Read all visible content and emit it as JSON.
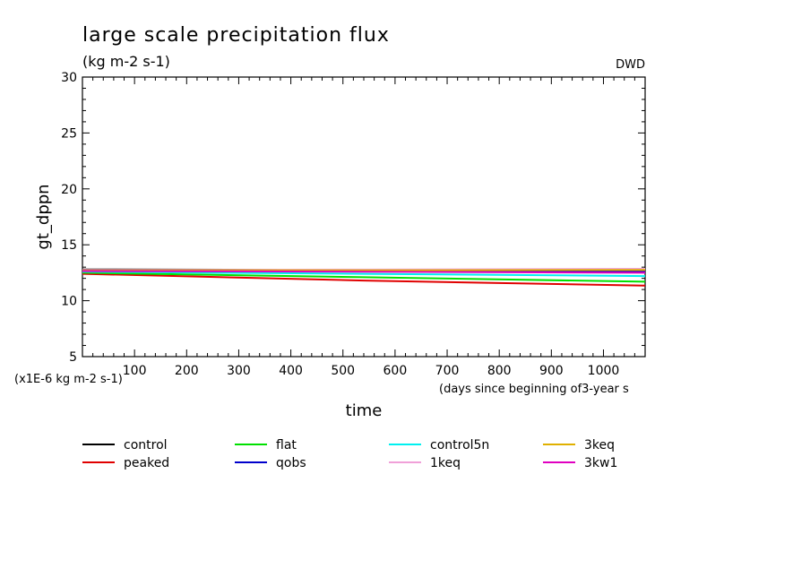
{
  "chart_data": {
    "type": "line",
    "title": "large scale precipitation flux",
    "units": "(kg m-2 s-1)",
    "source_label": "DWD",
    "ylabel": "gt_dppn",
    "xlabel": "time",
    "x_units": "(days since beginning of3-year s",
    "y_scale_note": "(x1E-6 kg m-2 s-1)",
    "xlim": [
      0,
      1080
    ],
    "ylim": [
      5,
      30
    ],
    "x_ticks": [
      100,
      200,
      300,
      400,
      500,
      600,
      700,
      800,
      900,
      1000
    ],
    "y_ticks": [
      5,
      10,
      15,
      20,
      25,
      30
    ],
    "grid": false,
    "legend_position": "bottom",
    "series": [
      {
        "name": "control",
        "color": "#000000",
        "x": [
          0,
          540,
          1080
        ],
        "values": [
          12.8,
          12.75,
          12.75
        ]
      },
      {
        "name": "peaked",
        "color": "#e00000",
        "x": [
          0,
          540,
          1080
        ],
        "values": [
          12.4,
          11.8,
          11.35
        ]
      },
      {
        "name": "flat",
        "color": "#00e000",
        "x": [
          0,
          540,
          1080
        ],
        "values": [
          12.5,
          12.1,
          11.7
        ]
      },
      {
        "name": "qobs",
        "color": "#0000cc",
        "x": [
          0,
          540,
          1080
        ],
        "values": [
          12.7,
          12.65,
          12.6
        ]
      },
      {
        "name": "control5n",
        "color": "#00f0f0",
        "x": [
          0,
          540,
          1080
        ],
        "values": [
          12.6,
          12.4,
          12.2
        ]
      },
      {
        "name": "1keq",
        "color": "#f0a0d8",
        "x": [
          0,
          540,
          1080
        ],
        "values": [
          12.75,
          12.78,
          12.85
        ]
      },
      {
        "name": "3keq",
        "color": "#e0b000",
        "x": [
          0,
          540,
          1080
        ],
        "values": [
          12.7,
          12.72,
          12.75
        ]
      },
      {
        "name": "3kw1",
        "color": "#e000c0",
        "x": [
          0,
          540,
          1080
        ],
        "values": [
          12.65,
          12.6,
          12.5
        ]
      }
    ]
  }
}
